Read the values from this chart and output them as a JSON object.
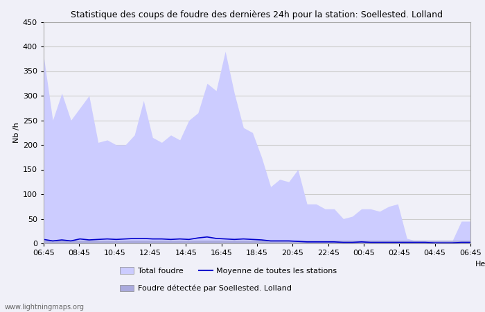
{
  "title": "Statistique des coups de foudre des dernières 24h pour la station: Soellested. Lolland",
  "ylabel": "Nb /h",
  "ylim": [
    0,
    450
  ],
  "yticks": [
    0,
    50,
    100,
    150,
    200,
    250,
    300,
    350,
    400,
    450
  ],
  "background_color": "#f0f0f8",
  "plot_bg_color": "#f0f0f8",
  "grid_color": "#cccccc",
  "x_labels": [
    "06:45",
    "08:45",
    "10:45",
    "12:45",
    "14:45",
    "16:45",
    "18:45",
    "20:45",
    "22:45",
    "00:45",
    "02:45",
    "04:45",
    "06:45"
  ],
  "total_foudre_color": "#ccccff",
  "detected_foudre_color": "#aaaadd",
  "moyenne_color": "#0000cc",
  "watermark": "www.lightningmaps.org",
  "legend_total": "Total foudre",
  "legend_moyenne": "Moyenne de toutes les stations",
  "legend_detected": "Foudre détectée par Soellested. Lolland",
  "total_foudre": [
    380,
    250,
    305,
    250,
    275,
    300,
    205,
    210,
    200,
    200,
    220,
    290,
    215,
    205,
    220,
    210,
    250,
    265,
    325,
    310,
    390,
    305,
    235,
    225,
    175,
    115,
    130,
    125,
    150,
    80,
    80,
    70,
    70,
    50,
    55,
    70,
    70,
    65,
    75,
    80,
    10,
    5,
    5,
    5,
    5,
    5,
    45,
    45
  ],
  "detected_foudre": [
    5,
    5,
    5,
    5,
    5,
    5,
    5,
    5,
    5,
    5,
    5,
    5,
    5,
    5,
    5,
    5,
    5,
    5,
    5,
    5,
    5,
    5,
    5,
    5,
    5,
    5,
    5,
    5,
    5,
    5,
    5,
    5,
    5,
    5,
    5,
    5,
    5,
    5,
    5,
    5,
    5,
    5,
    5,
    5,
    5,
    5,
    5,
    5
  ],
  "moyenne": [
    8,
    5,
    7,
    5,
    9,
    7,
    8,
    9,
    8,
    9,
    10,
    10,
    9,
    9,
    8,
    9,
    8,
    11,
    13,
    10,
    9,
    8,
    9,
    8,
    7,
    5,
    5,
    5,
    4,
    3,
    3,
    3,
    3,
    2,
    2,
    3,
    2,
    2,
    2,
    2,
    2,
    2,
    2,
    1,
    1,
    1,
    2,
    2
  ]
}
